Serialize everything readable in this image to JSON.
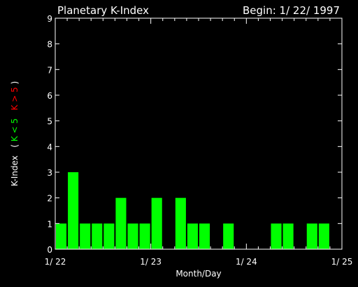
{
  "chart_data": {
    "type": "bar",
    "title": "Planetary K-Index",
    "begin_label": "Begin: 1/ 22/ 1997",
    "xlabel": "Month/Day",
    "ylabel": {
      "main": "K-Index",
      "paren_open": "(",
      "green_part": "K < 5",
      "red_part": "K > 5",
      "paren_close": ")"
    },
    "ylim": [
      0,
      9
    ],
    "yticks": [
      "0",
      "1",
      "2",
      "3",
      "4",
      "5",
      "6",
      "7",
      "8",
      "9"
    ],
    "xlim": [
      0,
      24
    ],
    "xticks": [
      {
        "x": 0,
        "label": "1/ 22"
      },
      {
        "x": 8,
        "label": "1/ 23"
      },
      {
        "x": 16,
        "label": "1/ 24"
      },
      {
        "x": 24,
        "label": "1/ 25"
      }
    ],
    "values": [
      1,
      3,
      1,
      1,
      1,
      2,
      1,
      1,
      2,
      0,
      2,
      1,
      1,
      0,
      1,
      0,
      0,
      0,
      1,
      1,
      0,
      1,
      1,
      0
    ],
    "colors": {
      "below_5": "#00ff00",
      "above_5": "#ff0000",
      "axes": "#ffffff",
      "background": "#000000"
    }
  }
}
